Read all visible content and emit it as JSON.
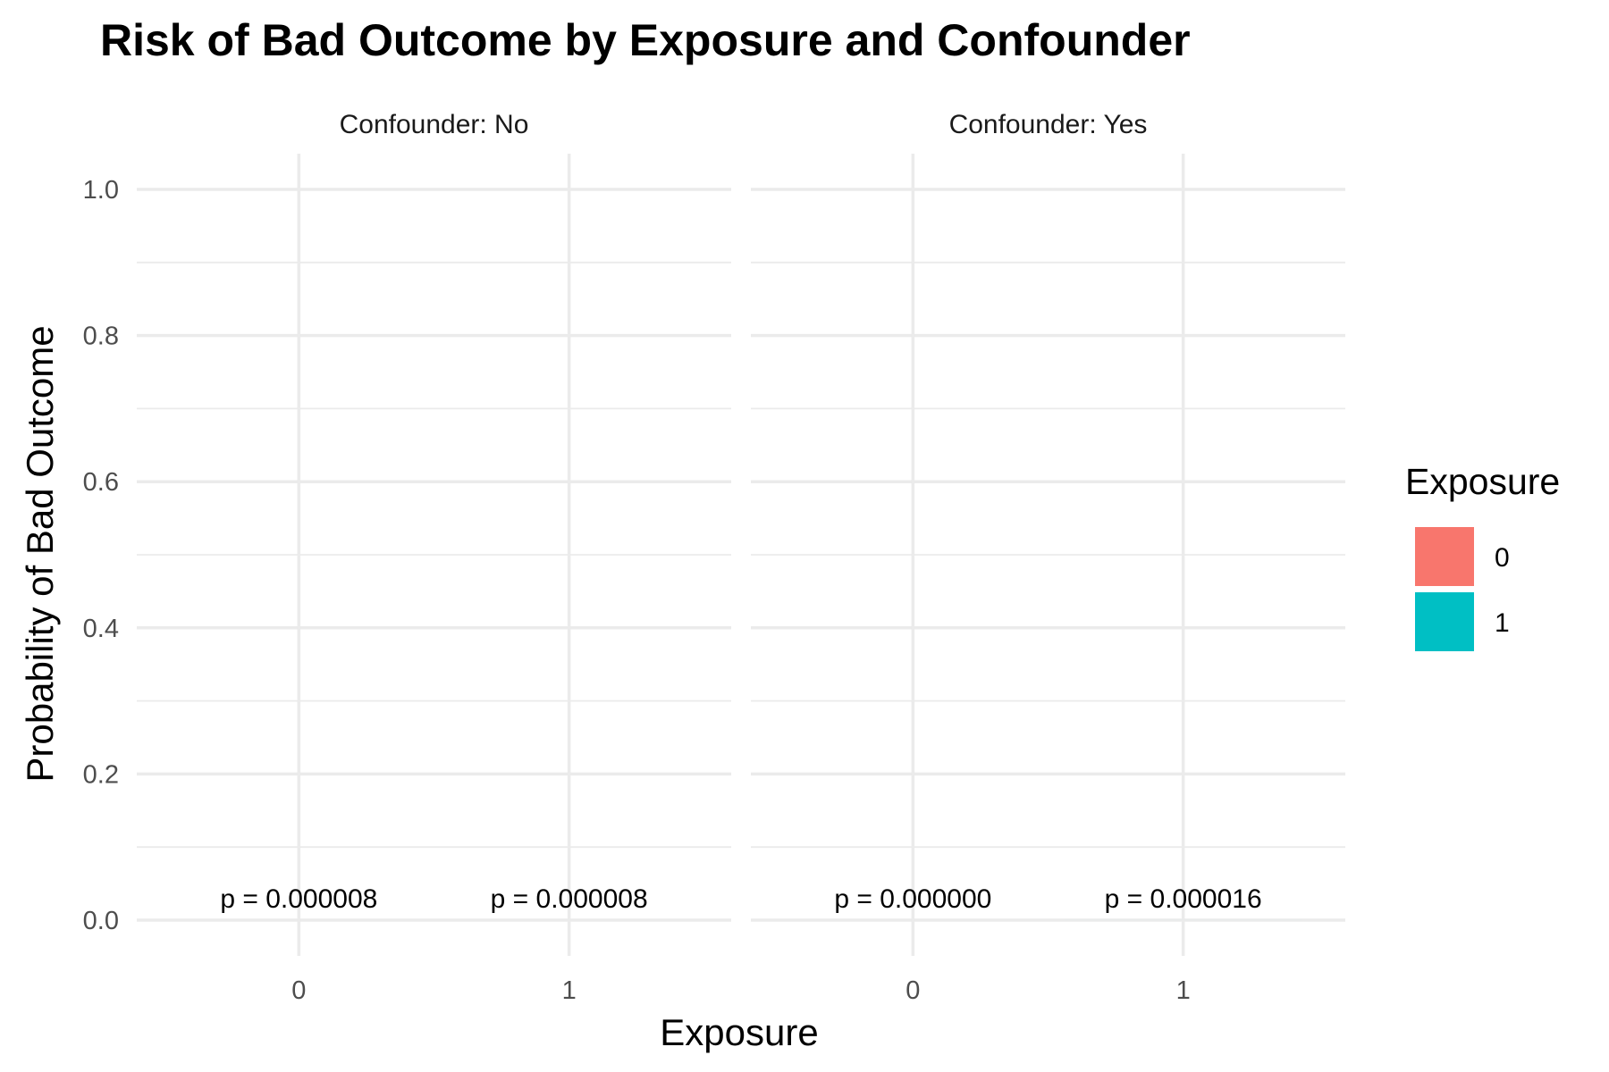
{
  "chart_data": {
    "type": "bar",
    "title": "Risk of Bad Outcome by Exposure and Confounder",
    "xlabel": "Exposure",
    "ylabel": "Probability of Bad Outcome",
    "ylim": [
      0,
      1
    ],
    "yticks": [
      "0.0",
      "0.2",
      "0.4",
      "0.6",
      "0.8",
      "1.0"
    ],
    "categories": [
      "0",
      "1"
    ],
    "grid": true,
    "legend": {
      "title": "Exposure",
      "position": "right",
      "items": [
        {
          "label": "0",
          "color": "#F8766D"
        },
        {
          "label": "1",
          "color": "#00BFC4"
        }
      ]
    },
    "facets": [
      {
        "label": "Confounder: No",
        "values": [
          8e-06,
          8e-06
        ],
        "annotations": [
          "p = 0.000008",
          "p = 0.000008"
        ]
      },
      {
        "label": "Confounder: Yes",
        "values": [
          0.0,
          1.6e-05
        ],
        "annotations": [
          "p = 0.000000",
          "p = 0.000016"
        ]
      }
    ]
  }
}
